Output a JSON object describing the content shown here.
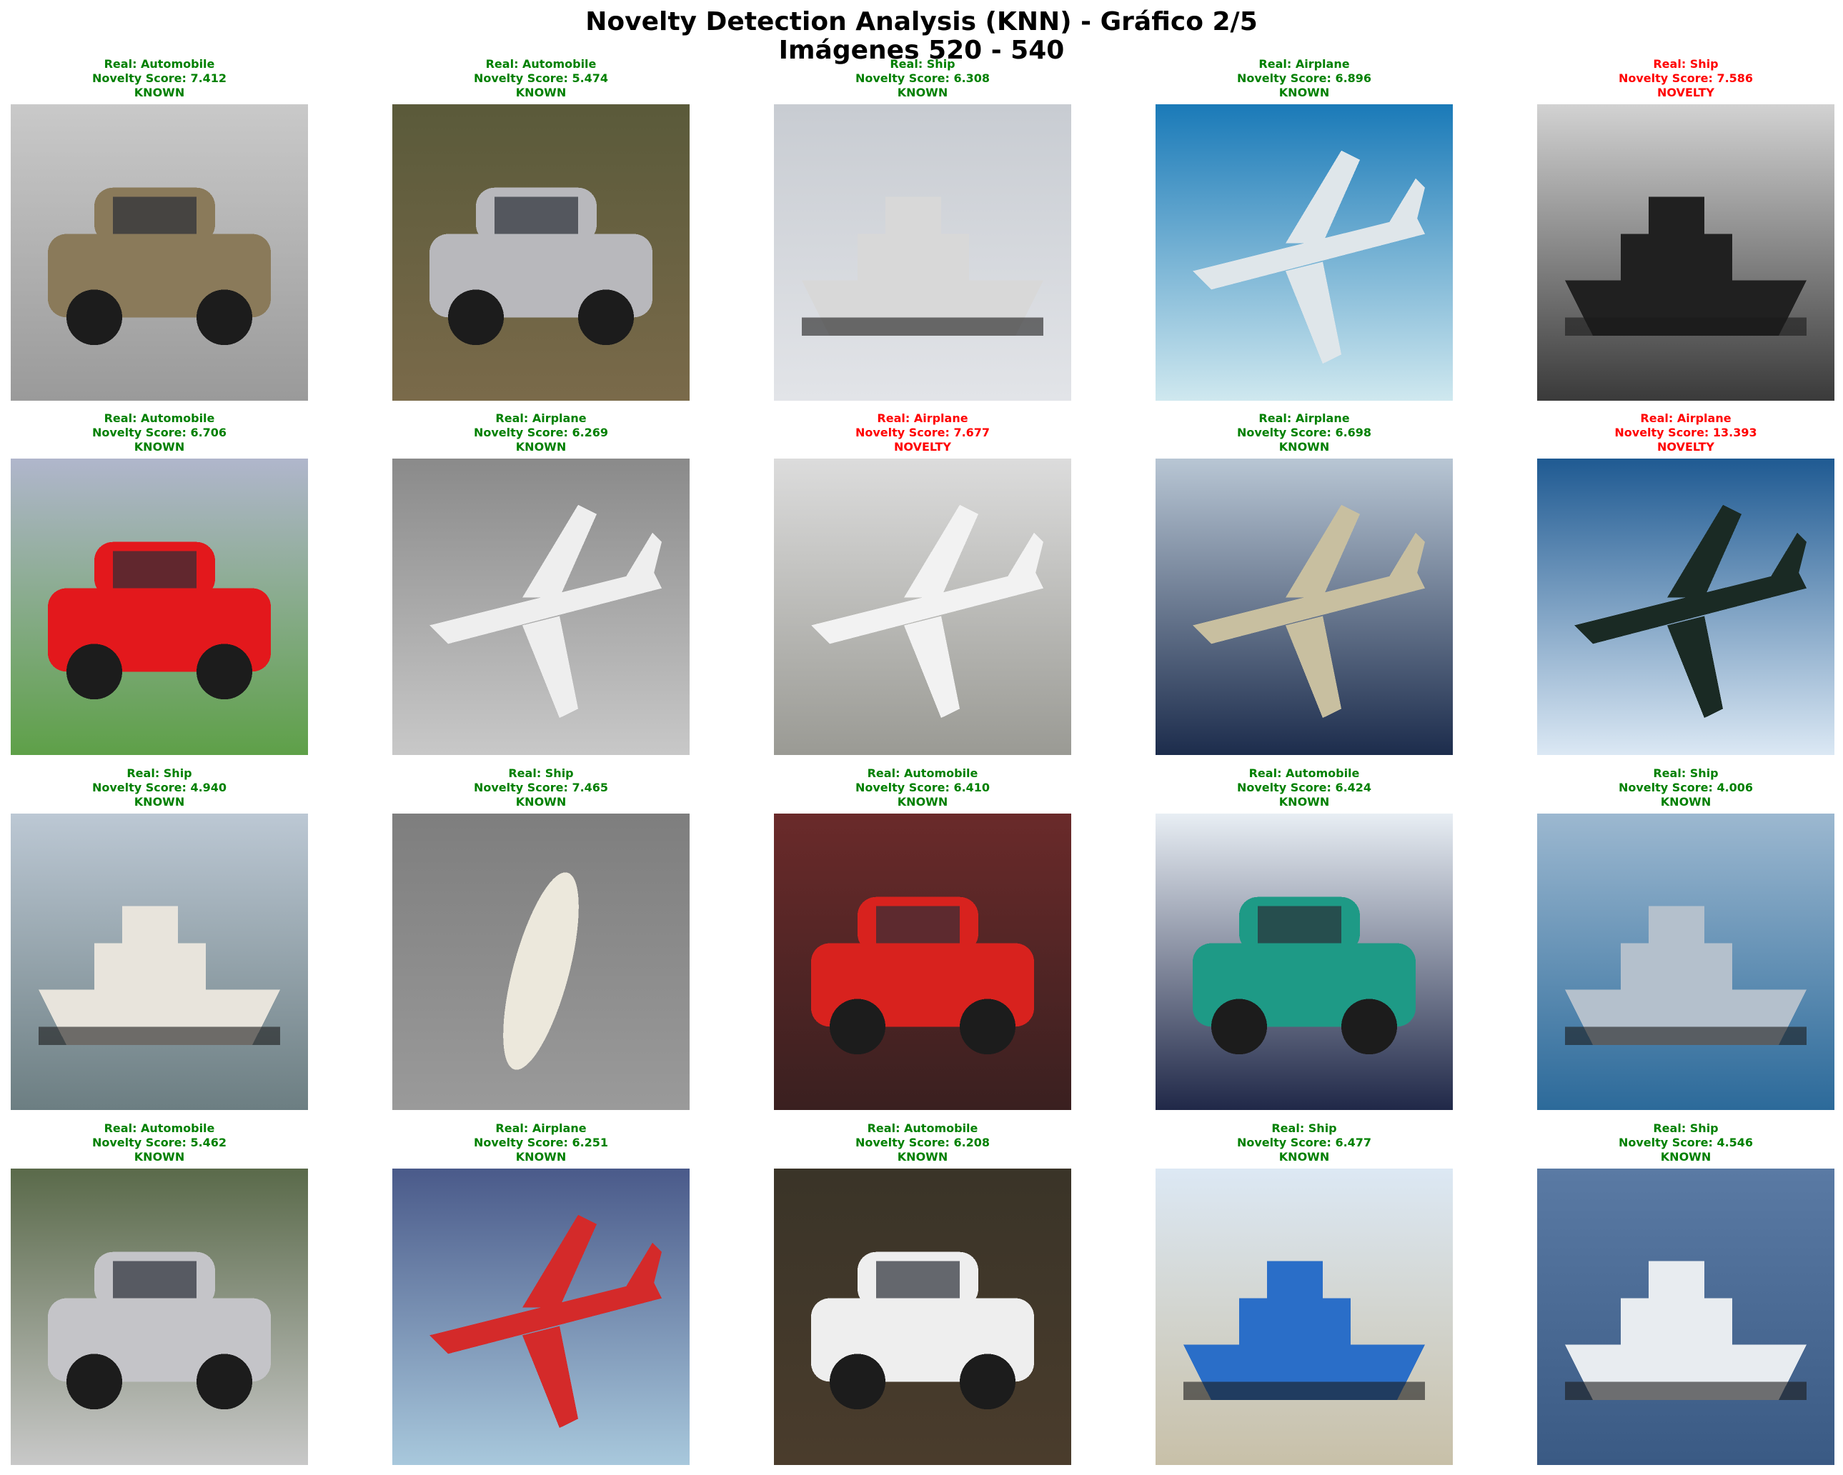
{
  "title": {
    "line1": "Novelty Detection Analysis (KNN) - Gráfico 2/5",
    "line2": "Imágenes 520 - 540"
  },
  "colors": {
    "known": "#008000",
    "novelty": "#ff0000"
  },
  "items": [
    {
      "real": "Real: Automobile",
      "score": "Novelty Score: 7.412",
      "status": "KNOWN",
      "subject": "car-photo",
      "scene": {
        "bg": [
          "#c9c9c9",
          "#9a9a9a"
        ],
        "obj": "car",
        "c": "#8a7a5a"
      }
    },
    {
      "real": "Real: Automobile",
      "score": "Novelty Score: 5.474",
      "status": "KNOWN",
      "subject": "car-photo",
      "scene": {
        "bg": [
          "#5a5a3a",
          "#7a6a4a"
        ],
        "obj": "car",
        "c": "#b8b8bc"
      }
    },
    {
      "real": "Real: Ship",
      "score": "Novelty Score: 6.308",
      "status": "KNOWN",
      "subject": "ship-photo",
      "scene": {
        "bg": [
          "#c8ccd2",
          "#e2e4e8"
        ],
        "obj": "ship",
        "c": "#d8d8d8"
      }
    },
    {
      "real": "Real: Airplane",
      "score": "Novelty Score: 6.896",
      "status": "KNOWN",
      "subject": "airplane-photo",
      "scene": {
        "bg": [
          "#1a7ab8",
          "#cfe8ef"
        ],
        "obj": "plane",
        "c": "#dfe6ea"
      }
    },
    {
      "real": "Real: Ship",
      "score": "Novelty Score: 7.586",
      "status": "NOVELTY",
      "subject": "ship-photo",
      "scene": {
        "bg": [
          "#d2d2d2",
          "#3a3a3a"
        ],
        "obj": "ship",
        "c": "#202020"
      }
    },
    {
      "real": "Real: Automobile",
      "score": "Novelty Score: 6.706",
      "status": "KNOWN",
      "subject": "car-photo",
      "scene": {
        "bg": [
          "#b0b6cc",
          "#5ea048"
        ],
        "obj": "car",
        "c": "#e3181c"
      }
    },
    {
      "real": "Real: Airplane",
      "score": "Novelty Score: 6.269",
      "status": "KNOWN",
      "subject": "airplane-photo",
      "scene": {
        "bg": [
          "#8a8a8a",
          "#c8c8c8"
        ],
        "obj": "plane",
        "c": "#eeeeee"
      }
    },
    {
      "real": "Real: Airplane",
      "score": "Novelty Score: 7.677",
      "status": "NOVELTY",
      "subject": "airplane-photo",
      "scene": {
        "bg": [
          "#dcdcdc",
          "#9a9a94"
        ],
        "obj": "plane",
        "c": "#f2f2f2"
      }
    },
    {
      "real": "Real: Airplane",
      "score": "Novelty Score: 6.698",
      "status": "KNOWN",
      "subject": "airplane-photo",
      "scene": {
        "bg": [
          "#b8c6d4",
          "#1c2c4c"
        ],
        "obj": "plane",
        "c": "#c8bfa0"
      }
    },
    {
      "real": "Real: Airplane",
      "score": "Novelty Score: 13.393",
      "status": "NOVELTY",
      "subject": "airplane-photo",
      "scene": {
        "bg": [
          "#1f5a92",
          "#dbe8f4"
        ],
        "obj": "plane",
        "c": "#1a2a24"
      }
    },
    {
      "real": "Real: Ship",
      "score": "Novelty Score: 4.940",
      "status": "KNOWN",
      "subject": "ship-photo",
      "scene": {
        "bg": [
          "#bcc8d4",
          "#6c7e82"
        ],
        "obj": "ship",
        "c": "#e8e4dc"
      }
    },
    {
      "real": "Real: Ship",
      "score": "Novelty Score: 7.465",
      "status": "KNOWN",
      "subject": "ship-photo",
      "scene": {
        "bg": [
          "#7e7e7e",
          "#9a9a9a"
        ],
        "obj": "boat",
        "c": "#ece8dc"
      }
    },
    {
      "real": "Real: Automobile",
      "score": "Novelty Score: 6.410",
      "status": "KNOWN",
      "subject": "car-photo",
      "scene": {
        "bg": [
          "#6a2a2a",
          "#3a2020"
        ],
        "obj": "car",
        "c": "#d8221e"
      }
    },
    {
      "real": "Real: Automobile",
      "score": "Novelty Score: 6.424",
      "status": "KNOWN",
      "subject": "car-photo",
      "scene": {
        "bg": [
          "#e8eef4",
          "#202848"
        ],
        "obj": "car",
        "c": "#1e9a86"
      }
    },
    {
      "real": "Real: Ship",
      "score": "Novelty Score: 4.006",
      "status": "KNOWN",
      "subject": "ship-photo",
      "scene": {
        "bg": [
          "#9cb8d0",
          "#2c6a9a"
        ],
        "obj": "ship",
        "c": "#b4c0cc"
      }
    },
    {
      "real": "Real: Automobile",
      "score": "Novelty Score: 5.462",
      "status": "KNOWN",
      "subject": "car-photo",
      "scene": {
        "bg": [
          "#5a6a4a",
          "#c8c8c8"
        ],
        "obj": "car",
        "c": "#c4c4c8"
      }
    },
    {
      "real": "Real: Airplane",
      "score": "Novelty Score: 6.251",
      "status": "KNOWN",
      "subject": "airplane-photo",
      "scene": {
        "bg": [
          "#4a5a8a",
          "#a8c8dc"
        ],
        "obj": "plane",
        "c": "#d42a2a"
      }
    },
    {
      "real": "Real: Automobile",
      "score": "Novelty Score: 6.208",
      "status": "KNOWN",
      "subject": "car-photo",
      "scene": {
        "bg": [
          "#3a3428",
          "#4a3c2c"
        ],
        "obj": "car",
        "c": "#eeeeee"
      }
    },
    {
      "real": "Real: Ship",
      "score": "Novelty Score: 6.477",
      "status": "KNOWN",
      "subject": "ship-photo",
      "scene": {
        "bg": [
          "#dce8f4",
          "#c8c0a8"
        ],
        "obj": "ship",
        "c": "#2a6ec8"
      }
    },
    {
      "real": "Real: Ship",
      "score": "Novelty Score: 4.546",
      "status": "KNOWN",
      "subject": "ship-photo",
      "scene": {
        "bg": [
          "#5a7aa4",
          "#3a5a84"
        ],
        "obj": "ship",
        "c": "#e8ecf0"
      }
    }
  ]
}
